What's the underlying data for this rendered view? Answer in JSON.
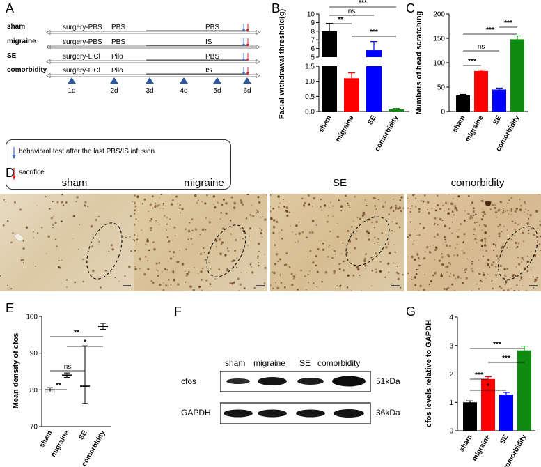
{
  "panels": {
    "A": "A",
    "B": "B",
    "C": "C",
    "D": "D",
    "E": "E",
    "F": "F",
    "G": "G"
  },
  "timeline": {
    "rows": [
      {
        "group": "sham",
        "surgery": "surgery-PBS",
        "pre": "PBS",
        "infusion": "PBS"
      },
      {
        "group": "migraine",
        "surgery": "surgery-PBS",
        "pre": "PBS",
        "infusion": "IS"
      },
      {
        "group": "SE",
        "surgery": "surgery-LiCl",
        "pre": "Pilo",
        "infusion": "PBS"
      },
      {
        "group": "comorbidity",
        "surgery": "surgery-LiCl",
        "pre": "Pilo",
        "infusion": "IS"
      }
    ],
    "days": [
      "1d",
      "2d",
      "3d",
      "4d",
      "5d",
      "6d"
    ],
    "legend_blue": "behavioral test after the last PBS/IS infusion",
    "legend_red": "sacrifice",
    "blue_color": "#3a6fd8",
    "red_color": "#e02020",
    "marker_color": "#2e5a9c"
  },
  "groups": [
    "sham",
    "migraine",
    "SE",
    "comorbidity"
  ],
  "colors": {
    "sham": "#000000",
    "migraine": "#ff0000",
    "SE": "#0000ff",
    "comorbidity": "#118a11"
  },
  "chart_data": [
    {
      "panel": "B",
      "type": "bar",
      "ylabel": "Facial withdrawal threshold(g)",
      "categories": [
        "sham",
        "migraine",
        "SE",
        "comorbidity"
      ],
      "values": [
        8.0,
        1.1,
        5.8,
        0.07
      ],
      "errors": [
        0.9,
        0.18,
        1.0,
        0.03
      ],
      "axis_break": {
        "lower": [
          0,
          1.5
        ],
        "upper": [
          5,
          10
        ]
      },
      "yticks": [
        "0.0",
        "0.5",
        "1.0",
        "1.5",
        "5",
        "6",
        "7",
        "8",
        "9",
        "10"
      ],
      "significance": [
        {
          "pair": [
            "sham",
            "migraine"
          ],
          "label": "**"
        },
        {
          "pair": [
            "sham",
            "SE"
          ],
          "label": "ns"
        },
        {
          "pair": [
            "sham",
            "comorbidity"
          ],
          "label": "***"
        },
        {
          "pair": [
            "migraine",
            "comorbidity"
          ],
          "label": "***"
        }
      ]
    },
    {
      "panel": "C",
      "type": "bar",
      "ylabel": "Numbers of  head scratching",
      "categories": [
        "sham",
        "migraine",
        "SE",
        "comorbidity"
      ],
      "values": [
        33,
        83,
        45,
        148
      ],
      "errors": [
        2,
        2,
        3,
        7
      ],
      "ylim": [
        0,
        200
      ],
      "yticks": [
        "0",
        "50",
        "100",
        "150",
        "200"
      ],
      "significance": [
        {
          "pair": [
            "sham",
            "migraine"
          ],
          "label": "***"
        },
        {
          "pair": [
            "sham",
            "SE"
          ],
          "label": "ns"
        },
        {
          "pair": [
            "sham",
            "comorbidity"
          ],
          "label": "***"
        },
        {
          "pair": [
            "SE",
            "comorbidity"
          ],
          "label": "***"
        }
      ]
    },
    {
      "panel": "E",
      "type": "scatter",
      "ylabel": "Mean density of cfos",
      "categories": [
        "sham",
        "migraine",
        "SE",
        "comorbidity"
      ],
      "values": [
        80.0,
        84.0,
        81.0,
        97.3
      ],
      "errors_low": [
        79.4,
        83.4,
        76.3,
        96.5
      ],
      "errors_high": [
        80.6,
        84.6,
        92.0,
        98.1
      ],
      "ylim": [
        70,
        100
      ],
      "yticks": [
        "70",
        "80",
        "90",
        "100"
      ],
      "significance": [
        {
          "pair": [
            "sham",
            "migraine"
          ],
          "label": "**"
        },
        {
          "pair": [
            "sham",
            "SE"
          ],
          "label": "ns"
        },
        {
          "pair": [
            "sham",
            "comorbidity"
          ],
          "label": "**"
        },
        {
          "pair": [
            "migraine",
            "comorbidity"
          ],
          "label": "*"
        }
      ]
    },
    {
      "panel": "G",
      "type": "bar",
      "ylabel": "cfos levels relative to GAPDH",
      "categories": [
        "sham",
        "migraine",
        "SE",
        "comorbidity"
      ],
      "values": [
        1.0,
        1.82,
        1.27,
        2.83
      ],
      "errors": [
        0.05,
        0.08,
        0.08,
        0.15
      ],
      "ylim": [
        0,
        4
      ],
      "yticks": [
        "0",
        "1",
        "2",
        "3",
        "4"
      ],
      "significance": [
        {
          "pair": [
            "sham",
            "migraine"
          ],
          "label": "***"
        },
        {
          "pair": [
            "sham",
            "SE"
          ],
          "label": "*"
        },
        {
          "pair": [
            "sham",
            "comorbidity"
          ],
          "label": "***"
        },
        {
          "pair": [
            "migraine",
            "comorbidity"
          ],
          "label": "***"
        }
      ]
    }
  ],
  "western": {
    "lanes": [
      "sham",
      "migraine",
      "SE",
      "comorbidity"
    ],
    "rows": [
      {
        "protein": "cfos",
        "size": "51kDa"
      },
      {
        "protein": "GAPDH",
        "size": "36kDa"
      }
    ]
  },
  "histology": {
    "labels": [
      "sham",
      "migraine",
      "SE",
      "comorbidity"
    ]
  }
}
